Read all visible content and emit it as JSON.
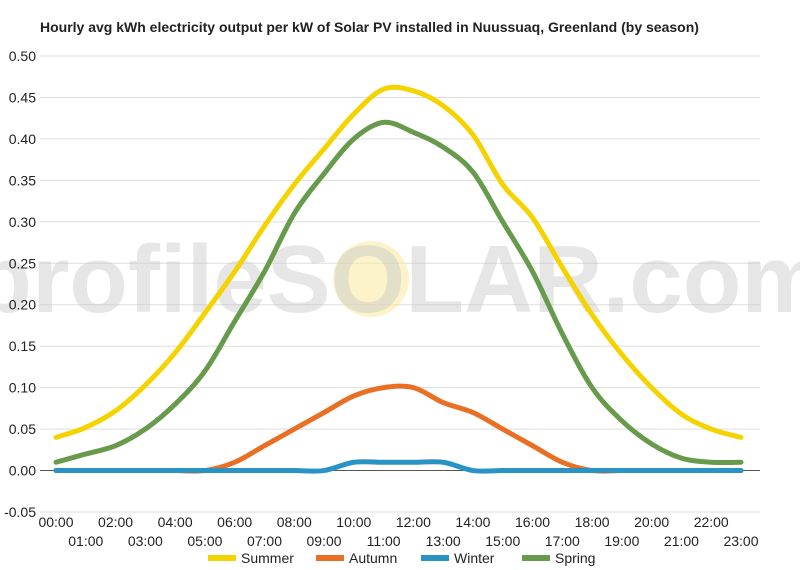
{
  "chart_data": {
    "type": "line",
    "title": "Hourly avg kWh electricity output per kW of Solar PV installed in Nuussuaq, Greenland (by season)",
    "xlabel": "",
    "ylabel": "",
    "categories": [
      "00:00",
      "01:00",
      "02:00",
      "03:00",
      "04:00",
      "05:00",
      "06:00",
      "07:00",
      "08:00",
      "09:00",
      "10:00",
      "11:00",
      "12:00",
      "13:00",
      "14:00",
      "15:00",
      "16:00",
      "17:00",
      "18:00",
      "19:00",
      "20:00",
      "21:00",
      "22:00",
      "23:00"
    ],
    "ylim": [
      -0.05,
      0.5
    ],
    "yticks": [
      "0.50",
      "0.45",
      "0.40",
      "0.35",
      "0.30",
      "0.25",
      "0.20",
      "0.15",
      "0.10",
      "0.05",
      "0.00",
      "-0.05"
    ],
    "grid": true,
    "legend_position": "bottom",
    "series": [
      {
        "name": "Summer",
        "color": "#f5d300",
        "values": [
          0.04,
          0.052,
          0.072,
          0.103,
          0.142,
          0.19,
          0.24,
          0.295,
          0.345,
          0.388,
          0.43,
          0.46,
          0.458,
          0.44,
          0.405,
          0.345,
          0.305,
          0.245,
          0.188,
          0.14,
          0.1,
          0.068,
          0.05,
          0.04
        ]
      },
      {
        "name": "Autumn",
        "color": "#e86f24",
        "values": [
          0,
          0,
          0,
          0,
          0,
          0,
          0.01,
          0.03,
          0.05,
          0.07,
          0.09,
          0.1,
          0.1,
          0.082,
          0.07,
          0.05,
          0.03,
          0.01,
          0,
          0,
          0,
          0,
          0,
          0
        ]
      },
      {
        "name": "Winter",
        "color": "#2a93c6",
        "values": [
          0,
          0,
          0,
          0,
          0,
          0,
          0,
          0,
          0,
          0,
          0.01,
          0.01,
          0.01,
          0.01,
          0,
          0,
          0,
          0,
          0,
          0,
          0,
          0,
          0,
          0
        ]
      },
      {
        "name": "Spring",
        "color": "#679a4b",
        "values": [
          0.01,
          0.02,
          0.03,
          0.05,
          0.08,
          0.12,
          0.18,
          0.24,
          0.31,
          0.358,
          0.4,
          0.42,
          0.408,
          0.39,
          0.36,
          0.3,
          0.24,
          0.165,
          0.1,
          0.06,
          0.032,
          0.015,
          0.01,
          0.01
        ]
      }
    ]
  },
  "watermark": "profileSOLAR.com"
}
